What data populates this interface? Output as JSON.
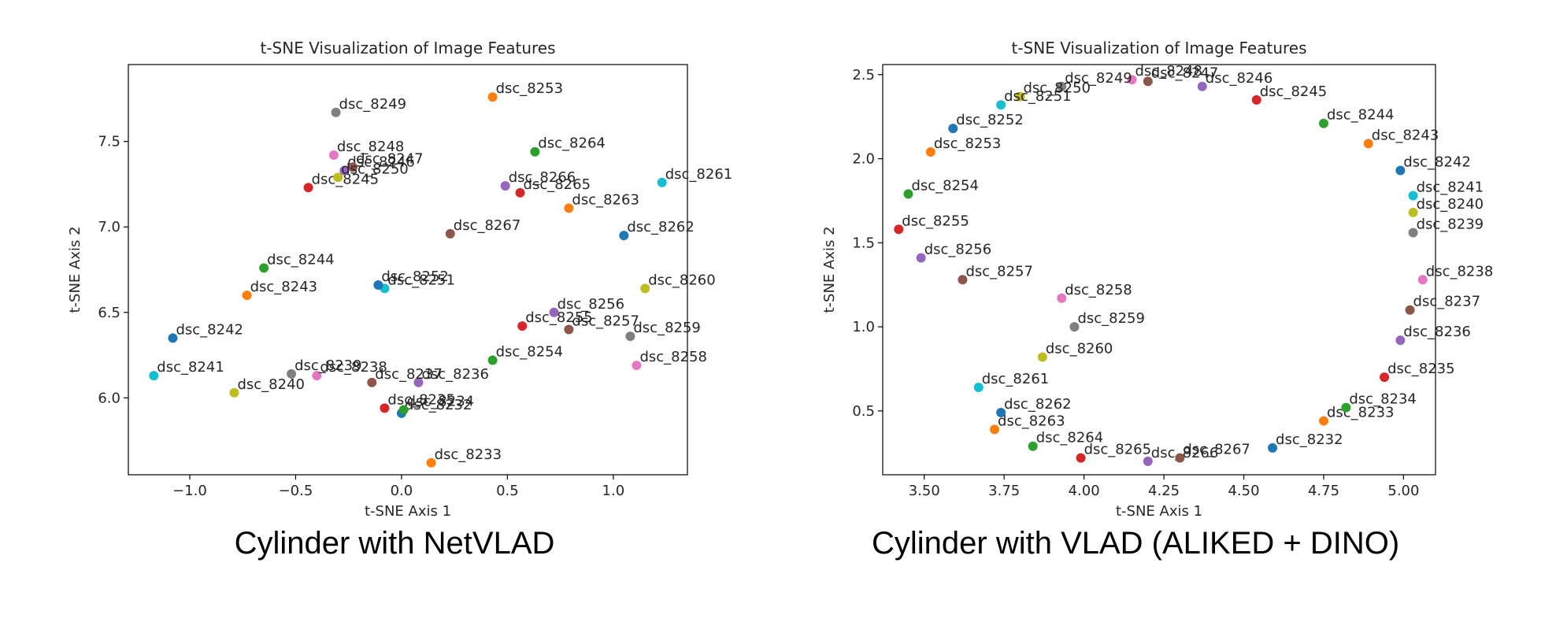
{
  "chart_data": [
    {
      "type": "scatter",
      "title": "t-SNE Visualization of Image Features",
      "xlabel": "t-SNE Axis 1",
      "ylabel": "t-SNE Axis 2",
      "xlim": [
        -1.29,
        1.35
      ],
      "ylim": [
        5.55,
        7.95
      ],
      "xticks": [
        -1.0,
        -0.5,
        0.0,
        0.5,
        1.0
      ],
      "xtick_labels": [
        "−1.0",
        "−0.5",
        "0.0",
        "0.5",
        "1.0"
      ],
      "yticks": [
        6.0,
        6.5,
        7.0,
        7.5
      ],
      "ytick_labels": [
        "6.0",
        "6.5",
        "7.0",
        "7.5"
      ],
      "grid": false,
      "caption": "Cylinder with NetVLAD",
      "points": [
        {
          "label": "dsc_8232",
          "x": 0.0,
          "y": 5.91,
          "color": "#1f77b4"
        },
        {
          "label": "dsc_8233",
          "x": 0.14,
          "y": 5.62,
          "color": "#ff7f0e"
        },
        {
          "label": "dsc_8234",
          "x": 0.01,
          "y": 5.93,
          "color": "#2ca02c"
        },
        {
          "label": "dsc_8235",
          "x": -0.08,
          "y": 5.94,
          "color": "#d62728"
        },
        {
          "label": "dsc_8236",
          "x": 0.08,
          "y": 6.09,
          "color": "#9467bd"
        },
        {
          "label": "dsc_8237",
          "x": -0.14,
          "y": 6.09,
          "color": "#8c564b"
        },
        {
          "label": "dsc_8238",
          "x": -0.4,
          "y": 6.13,
          "color": "#e377c2"
        },
        {
          "label": "dsc_8239",
          "x": -0.52,
          "y": 6.14,
          "color": "#7f7f7f"
        },
        {
          "label": "dsc_8240",
          "x": -0.79,
          "y": 6.03,
          "color": "#bcbd22"
        },
        {
          "label": "dsc_8241",
          "x": -1.17,
          "y": 6.13,
          "color": "#17becf"
        },
        {
          "label": "dsc_8242",
          "x": -1.08,
          "y": 6.35,
          "color": "#1f77b4"
        },
        {
          "label": "dsc_8243",
          "x": -0.73,
          "y": 6.6,
          "color": "#ff7f0e"
        },
        {
          "label": "dsc_8244",
          "x": -0.65,
          "y": 6.76,
          "color": "#2ca02c"
        },
        {
          "label": "dsc_8245",
          "x": -0.44,
          "y": 7.23,
          "color": "#d62728"
        },
        {
          "label": "dsc_8246",
          "x": -0.27,
          "y": 7.33,
          "color": "#9467bd"
        },
        {
          "label": "dsc_8247",
          "x": -0.23,
          "y": 7.35,
          "color": "#8c564b"
        },
        {
          "label": "dsc_8248",
          "x": -0.32,
          "y": 7.42,
          "color": "#e377c2"
        },
        {
          "label": "dsc_8249",
          "x": -0.31,
          "y": 7.67,
          "color": "#7f7f7f"
        },
        {
          "label": "dsc_8250",
          "x": -0.3,
          "y": 7.29,
          "color": "#bcbd22"
        },
        {
          "label": "dsc_8251",
          "x": -0.08,
          "y": 6.64,
          "color": "#17becf"
        },
        {
          "label": "dsc_8252",
          "x": -0.11,
          "y": 6.66,
          "color": "#1f77b4"
        },
        {
          "label": "dsc_8253",
          "x": 0.43,
          "y": 7.76,
          "color": "#ff7f0e"
        },
        {
          "label": "dsc_8254",
          "x": 0.43,
          "y": 6.22,
          "color": "#2ca02c"
        },
        {
          "label": "dsc_8255",
          "x": 0.57,
          "y": 6.42,
          "color": "#d62728"
        },
        {
          "label": "dsc_8256",
          "x": 0.72,
          "y": 6.5,
          "color": "#9467bd"
        },
        {
          "label": "dsc_8257",
          "x": 0.79,
          "y": 6.4,
          "color": "#8c564b"
        },
        {
          "label": "dsc_8258",
          "x": 1.11,
          "y": 6.19,
          "color": "#e377c2"
        },
        {
          "label": "dsc_8259",
          "x": 1.08,
          "y": 6.36,
          "color": "#7f7f7f"
        },
        {
          "label": "dsc_8260",
          "x": 1.15,
          "y": 6.64,
          "color": "#bcbd22"
        },
        {
          "label": "dsc_8261",
          "x": 1.23,
          "y": 7.26,
          "color": "#17becf"
        },
        {
          "label": "dsc_8262",
          "x": 1.05,
          "y": 6.95,
          "color": "#1f77b4"
        },
        {
          "label": "dsc_8263",
          "x": 0.79,
          "y": 7.11,
          "color": "#ff7f0e"
        },
        {
          "label": "dsc_8264",
          "x": 0.63,
          "y": 7.44,
          "color": "#2ca02c"
        },
        {
          "label": "dsc_8265",
          "x": 0.56,
          "y": 7.2,
          "color": "#d62728"
        },
        {
          "label": "dsc_8266",
          "x": 0.49,
          "y": 7.24,
          "color": "#9467bd"
        },
        {
          "label": "dsc_8267",
          "x": 0.23,
          "y": 6.96,
          "color": "#8c564b"
        }
      ]
    },
    {
      "type": "scatter",
      "title": "t-SNE Visualization of Image Features",
      "xlabel": "t-SNE Axis 1",
      "ylabel": "t-SNE Axis 2",
      "xlim": [
        3.37,
        5.1
      ],
      "ylim": [
        0.12,
        2.56
      ],
      "xticks": [
        3.5,
        3.75,
        4.0,
        4.25,
        4.5,
        4.75,
        5.0
      ],
      "xtick_labels": [
        "3.50",
        "3.75",
        "4.00",
        "4.25",
        "4.50",
        "4.75",
        "5.00"
      ],
      "yticks": [
        0.5,
        1.0,
        1.5,
        2.0,
        2.5
      ],
      "ytick_labels": [
        "0.5",
        "1.0",
        "1.5",
        "2.0",
        "2.5"
      ],
      "grid": false,
      "caption": "Cylinder with VLAD (ALIKED + DINO)",
      "points": [
        {
          "label": "dsc_8232",
          "x": 4.59,
          "y": 0.28,
          "color": "#1f77b4"
        },
        {
          "label": "dsc_8233",
          "x": 4.75,
          "y": 0.44,
          "color": "#ff7f0e"
        },
        {
          "label": "dsc_8234",
          "x": 4.82,
          "y": 0.52,
          "color": "#2ca02c"
        },
        {
          "label": "dsc_8235",
          "x": 4.94,
          "y": 0.7,
          "color": "#d62728"
        },
        {
          "label": "dsc_8236",
          "x": 4.99,
          "y": 0.92,
          "color": "#9467bd"
        },
        {
          "label": "dsc_8237",
          "x": 5.02,
          "y": 1.1,
          "color": "#8c564b"
        },
        {
          "label": "dsc_8238",
          "x": 5.06,
          "y": 1.28,
          "color": "#e377c2"
        },
        {
          "label": "dsc_8239",
          "x": 5.03,
          "y": 1.56,
          "color": "#7f7f7f"
        },
        {
          "label": "dsc_8240",
          "x": 5.03,
          "y": 1.68,
          "color": "#bcbd22"
        },
        {
          "label": "dsc_8241",
          "x": 5.03,
          "y": 1.78,
          "color": "#17becf"
        },
        {
          "label": "dsc_8242",
          "x": 4.99,
          "y": 1.93,
          "color": "#1f77b4"
        },
        {
          "label": "dsc_8243",
          "x": 4.89,
          "y": 2.09,
          "color": "#ff7f0e"
        },
        {
          "label": "dsc_8244",
          "x": 4.75,
          "y": 2.21,
          "color": "#2ca02c"
        },
        {
          "label": "dsc_8245",
          "x": 4.54,
          "y": 2.35,
          "color": "#d62728"
        },
        {
          "label": "dsc_8246",
          "x": 4.37,
          "y": 2.43,
          "color": "#9467bd"
        },
        {
          "label": "dsc_8247",
          "x": 4.2,
          "y": 2.46,
          "color": "#8c564b"
        },
        {
          "label": "dsc_8248",
          "x": 4.15,
          "y": 2.47,
          "color": "#e377c2"
        },
        {
          "label": "dsc_8249",
          "x": 3.93,
          "y": 2.43,
          "color": "#7f7f7f"
        },
        {
          "label": "dsc_8250",
          "x": 3.8,
          "y": 2.37,
          "color": "#bcbd22"
        },
        {
          "label": "dsc_8251",
          "x": 3.74,
          "y": 2.32,
          "color": "#17becf"
        },
        {
          "label": "dsc_8252",
          "x": 3.59,
          "y": 2.18,
          "color": "#1f77b4"
        },
        {
          "label": "dsc_8253",
          "x": 3.52,
          "y": 2.04,
          "color": "#ff7f0e"
        },
        {
          "label": "dsc_8254",
          "x": 3.45,
          "y": 1.79,
          "color": "#2ca02c"
        },
        {
          "label": "dsc_8255",
          "x": 3.42,
          "y": 1.58,
          "color": "#d62728"
        },
        {
          "label": "dsc_8256",
          "x": 3.49,
          "y": 1.41,
          "color": "#9467bd"
        },
        {
          "label": "dsc_8257",
          "x": 3.62,
          "y": 1.28,
          "color": "#8c564b"
        },
        {
          "label": "dsc_8258",
          "x": 3.93,
          "y": 1.17,
          "color": "#e377c2"
        },
        {
          "label": "dsc_8259",
          "x": 3.97,
          "y": 1.0,
          "color": "#7f7f7f"
        },
        {
          "label": "dsc_8260",
          "x": 3.87,
          "y": 0.82,
          "color": "#bcbd22"
        },
        {
          "label": "dsc_8261",
          "x": 3.67,
          "y": 0.64,
          "color": "#17becf"
        },
        {
          "label": "dsc_8262",
          "x": 3.74,
          "y": 0.49,
          "color": "#1f77b4"
        },
        {
          "label": "dsc_8263",
          "x": 3.72,
          "y": 0.39,
          "color": "#ff7f0e"
        },
        {
          "label": "dsc_8264",
          "x": 3.84,
          "y": 0.29,
          "color": "#2ca02c"
        },
        {
          "label": "dsc_8265",
          "x": 3.99,
          "y": 0.22,
          "color": "#d62728"
        },
        {
          "label": "dsc_8266",
          "x": 4.2,
          "y": 0.2,
          "color": "#9467bd"
        },
        {
          "label": "dsc_8267",
          "x": 4.3,
          "y": 0.22,
          "color": "#8c564b"
        }
      ]
    }
  ]
}
